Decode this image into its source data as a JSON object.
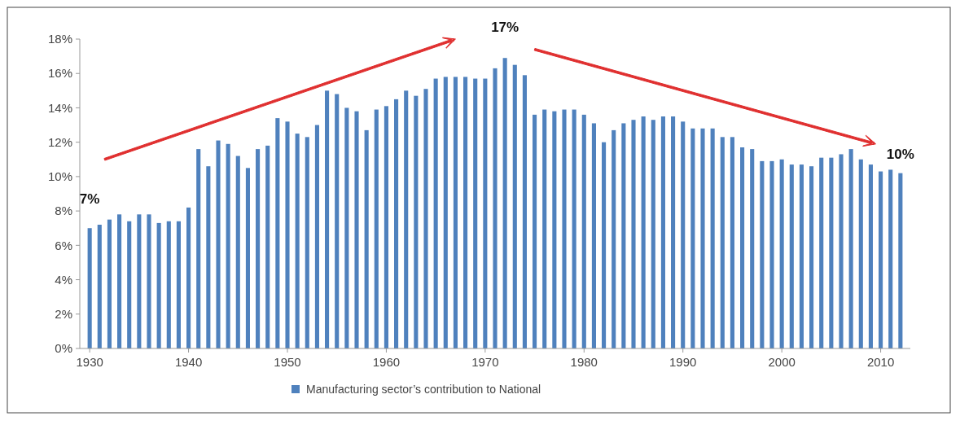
{
  "chart_data": {
    "type": "bar",
    "x": [
      1930,
      1931,
      1932,
      1933,
      1934,
      1935,
      1936,
      1937,
      1938,
      1939,
      1940,
      1941,
      1942,
      1943,
      1944,
      1945,
      1946,
      1947,
      1948,
      1949,
      1950,
      1951,
      1952,
      1953,
      1954,
      1955,
      1956,
      1957,
      1958,
      1959,
      1960,
      1961,
      1962,
      1963,
      1964,
      1965,
      1966,
      1967,
      1968,
      1969,
      1970,
      1971,
      1972,
      1973,
      1974,
      1975,
      1976,
      1977,
      1978,
      1979,
      1980,
      1981,
      1982,
      1983,
      1984,
      1985,
      1986,
      1987,
      1988,
      1989,
      1990,
      1991,
      1992,
      1993,
      1994,
      1995,
      1996,
      1997,
      1998,
      1999,
      2000,
      2001,
      2002,
      2003,
      2004,
      2005,
      2006,
      2007,
      2008,
      2009,
      2010,
      2011,
      2012
    ],
    "series": [
      {
        "name": "Manufacturing sector’s contribution to National",
        "color": "#4f81bd",
        "values": [
          7.0,
          7.2,
          7.5,
          7.8,
          7.4,
          7.8,
          7.8,
          7.3,
          7.4,
          7.4,
          8.2,
          11.6,
          10.6,
          12.1,
          11.9,
          11.2,
          10.5,
          11.6,
          11.8,
          13.4,
          13.2,
          12.5,
          12.3,
          13.0,
          15.0,
          14.8,
          14.0,
          13.8,
          12.7,
          13.9,
          14.1,
          14.5,
          15.0,
          14.7,
          15.1,
          15.7,
          15.8,
          15.8,
          15.8,
          15.7,
          15.7,
          16.3,
          16.9,
          16.5,
          15.9,
          13.6,
          13.9,
          13.8,
          13.9,
          13.9,
          13.6,
          13.1,
          12.0,
          12.7,
          13.1,
          13.3,
          13.5,
          13.3,
          13.5,
          13.5,
          13.2,
          12.8,
          12.8,
          12.8,
          12.3,
          12.3,
          11.7,
          11.6,
          10.9,
          10.9,
          11.0,
          10.7,
          10.7,
          10.6,
          11.1,
          11.1,
          11.3,
          11.6,
          11.0,
          10.7,
          10.3,
          10.4,
          10.2
        ]
      }
    ],
    "xlim": [
      1929,
      2013
    ],
    "xticks": [
      1930,
      1940,
      1950,
      1960,
      1970,
      1980,
      1990,
      2000,
      2010
    ],
    "ylim": [
      0,
      18
    ],
    "yticks": [
      {
        "value": 0,
        "label": "0%"
      },
      {
        "value": 2,
        "label": "2%"
      },
      {
        "value": 4,
        "label": "4%"
      },
      {
        "value": 6,
        "label": "6%"
      },
      {
        "value": 8,
        "label": "8%"
      },
      {
        "value": 10,
        "label": "10%"
      },
      {
        "value": 12,
        "label": "12%"
      },
      {
        "value": 14,
        "label": "14%"
      },
      {
        "value": 16,
        "label": "16%"
      },
      {
        "value": 18,
        "label": "18%"
      }
    ],
    "annotations": [
      {
        "text": "7%",
        "x": 1930,
        "y": 7.0
      },
      {
        "text": "17%",
        "x": 1972,
        "y": 16.9
      },
      {
        "text": "10%",
        "x": 2012,
        "y": 10.2
      }
    ],
    "grid": false,
    "legend": "bottom"
  }
}
